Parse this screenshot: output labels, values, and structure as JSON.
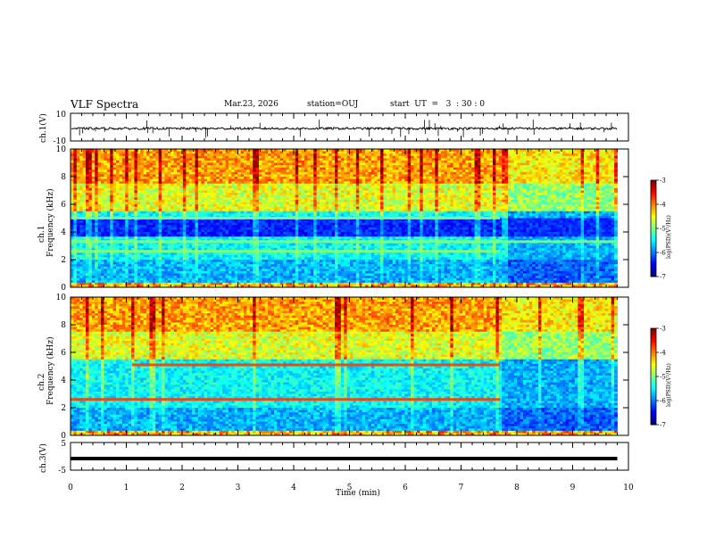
{
  "header": {
    "title": "VLF Spectra",
    "date": "Mar.23, 2026",
    "station": "station=OUJ",
    "start_time": "start  UT  =   3  : 30 : 0"
  },
  "chart_data": [
    {
      "type": "line",
      "id": "ch1-waveform",
      "ylabel": "ch.1(V)",
      "yticks": [
        "10",
        "-10"
      ],
      "ylim": [
        -10,
        10
      ],
      "baseline": -1,
      "xlim": [
        0,
        10
      ]
    },
    {
      "type": "heatmap",
      "id": "ch1-spectrogram",
      "ylabel": "ch.1\nFrequency (kHz)",
      "ylabel_line1": "ch.1",
      "ylabel_line2": "Frequency (kHz)",
      "ylim": [
        0,
        10
      ],
      "yticks": [
        "0",
        "2",
        "4",
        "6",
        "8",
        "10"
      ],
      "xlim": [
        0,
        10
      ],
      "data_end_min": 9.8,
      "colorbar": {
        "ticks": [
          "-3",
          "-4",
          "-5",
          "-6",
          "-7"
        ],
        "label": "log(PSD)(V²/Hz)",
        "range": [
          -7,
          -3
        ]
      },
      "features": [
        {
          "label": "persistent band",
          "freq_khz": 2.6,
          "end_min": 7.7
        },
        {
          "label": "persistent band",
          "freq_khz": 3.3,
          "end_min": 9.8
        },
        {
          "label": "persistent band",
          "freq_khz": 5.0,
          "end_min": 7.7
        }
      ]
    },
    {
      "type": "heatmap",
      "id": "ch2-spectrogram",
      "ylabel": "ch.2\nFrequency (kHz)",
      "ylabel_line1": "ch.2",
      "ylabel_line2": "Frequency (kHz)",
      "ylim": [
        0,
        10
      ],
      "yticks": [
        "0",
        "2",
        "4",
        "6",
        "8",
        "10"
      ],
      "xlim": [
        0,
        10
      ],
      "data_end_min": 9.8,
      "colorbar": {
        "ticks": [
          "-3",
          "-4",
          "-5",
          "-6",
          "-7"
        ],
        "label": "log(PSD)(V²/Hz)",
        "range": [
          -7,
          -3
        ]
      },
      "features": [
        {
          "label": "red band",
          "freq_khz": 5.1,
          "start_min": 1.1,
          "end_min": 7.7
        },
        {
          "label": "red band",
          "freq_khz": 2.6,
          "start_min": 0.0,
          "end_min": 7.7
        }
      ]
    },
    {
      "type": "line",
      "id": "ch3-waveform",
      "ylabel": "ch.3(V)",
      "yticks": [
        "5",
        "-5"
      ],
      "ylim": [
        -5,
        5
      ],
      "baseline": -0.8,
      "xlim": [
        0,
        10
      ]
    }
  ],
  "xaxis": {
    "label": "Time  (min)",
    "ticks": [
      "0",
      "1",
      "2",
      "3",
      "4",
      "5",
      "6",
      "7",
      "8",
      "9",
      "10"
    ],
    "range": [
      0,
      10
    ]
  }
}
